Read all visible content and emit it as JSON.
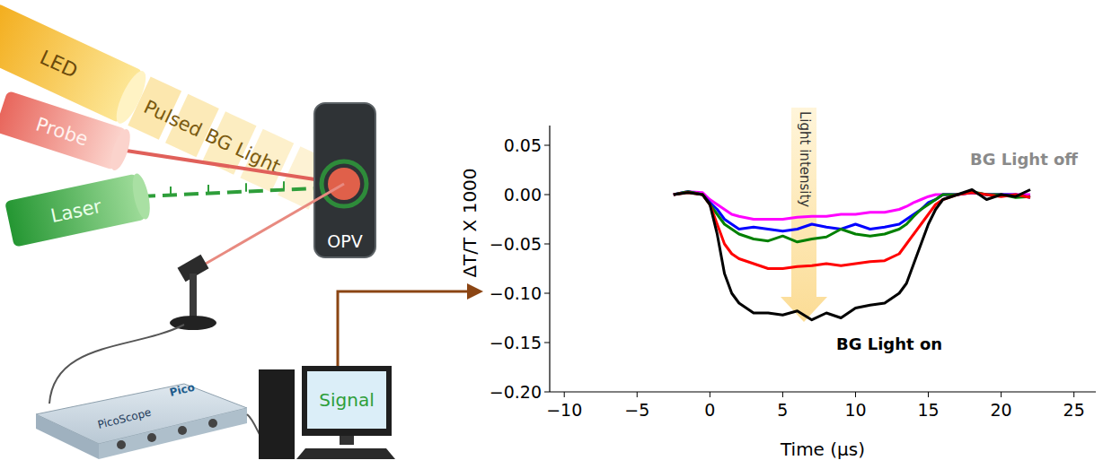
{
  "diagram": {
    "led": "LED",
    "bg_light": "Pulsed BG Light",
    "probe": "Probe",
    "laser": "Laser",
    "device": "OPV",
    "scope_logo": "Pico",
    "scope": "PicoScope",
    "screen": "Signal"
  },
  "chart_data": {
    "type": "line",
    "ylabel": "ΔT/T X 1000",
    "xlabel": "Time (μs)",
    "annotations": [
      "Light intensity",
      "BG Light off",
      "BG Light on"
    ],
    "x": [
      -2.5,
      -1.5,
      -0.5,
      0,
      0.5,
      1,
      1.5,
      2,
      3,
      4,
      5,
      6,
      7,
      8,
      9,
      10,
      11,
      12,
      13,
      13.5,
      14,
      14.5,
      15,
      15.5,
      16,
      17,
      18,
      19,
      20,
      21,
      22
    ],
    "series": [
      {
        "color": "#ff00ff",
        "values": [
          0,
          0.003,
          0.002,
          -0.005,
          -0.01,
          -0.015,
          -0.02,
          -0.022,
          -0.025,
          -0.025,
          -0.025,
          -0.023,
          -0.022,
          -0.022,
          -0.02,
          -0.02,
          -0.018,
          -0.018,
          -0.015,
          -0.012,
          -0.008,
          -0.005,
          -0.002,
          0,
          0,
          0,
          0.002,
          0,
          0,
          0,
          0
        ]
      },
      {
        "color": "#0000ff",
        "values": [
          0,
          0.003,
          0,
          -0.008,
          -0.015,
          -0.025,
          -0.03,
          -0.035,
          -0.033,
          -0.035,
          -0.037,
          -0.035,
          -0.03,
          -0.033,
          -0.035,
          -0.03,
          -0.035,
          -0.033,
          -0.03,
          -0.025,
          -0.02,
          -0.015,
          -0.008,
          -0.005,
          0,
          0,
          0.002,
          0,
          0,
          0,
          -0.003
        ]
      },
      {
        "color": "#008000",
        "values": [
          0,
          0.003,
          0,
          -0.01,
          -0.02,
          -0.03,
          -0.035,
          -0.04,
          -0.045,
          -0.047,
          -0.042,
          -0.048,
          -0.045,
          -0.043,
          -0.035,
          -0.04,
          -0.042,
          -0.04,
          -0.035,
          -0.03,
          -0.022,
          -0.015,
          -0.01,
          -0.005,
          0,
          0,
          0.003,
          0,
          0,
          -0.003,
          -0.002
        ]
      },
      {
        "color": "#ff0000",
        "values": [
          0,
          0.002,
          0,
          -0.01,
          -0.03,
          -0.05,
          -0.06,
          -0.065,
          -0.07,
          -0.075,
          -0.075,
          -0.073,
          -0.072,
          -0.07,
          -0.072,
          -0.07,
          -0.068,
          -0.067,
          -0.06,
          -0.05,
          -0.04,
          -0.03,
          -0.02,
          -0.01,
          -0.005,
          0,
          0.002,
          0,
          -0.002,
          0,
          -0.003
        ]
      },
      {
        "color": "#000000",
        "values": [
          0,
          0.002,
          0,
          -0.01,
          -0.04,
          -0.08,
          -0.1,
          -0.11,
          -0.12,
          -0.12,
          -0.122,
          -0.118,
          -0.127,
          -0.12,
          -0.125,
          -0.115,
          -0.112,
          -0.11,
          -0.1,
          -0.09,
          -0.07,
          -0.05,
          -0.03,
          -0.015,
          -0.005,
          0,
          0.005,
          -0.005,
          0,
          -0.002,
          0.005
        ]
      }
    ],
    "xlim": [
      -11,
      26.5
    ],
    "ylim": [
      -0.2,
      0.07
    ],
    "xticks": [
      {
        "value": -10,
        "label": "−10"
      },
      {
        "value": -5,
        "label": "−5"
      },
      0,
      5,
      10,
      15,
      20,
      25
    ],
    "yticks": [
      {
        "value": -0.2,
        "label": "−0.20"
      },
      {
        "value": -0.15,
        "label": "−0.15"
      },
      {
        "value": -0.1,
        "label": "−0.10"
      },
      {
        "value": -0.05,
        "label": "−0.05"
      },
      {
        "value": 0,
        "label": "0.00"
      },
      0.05
    ]
  }
}
